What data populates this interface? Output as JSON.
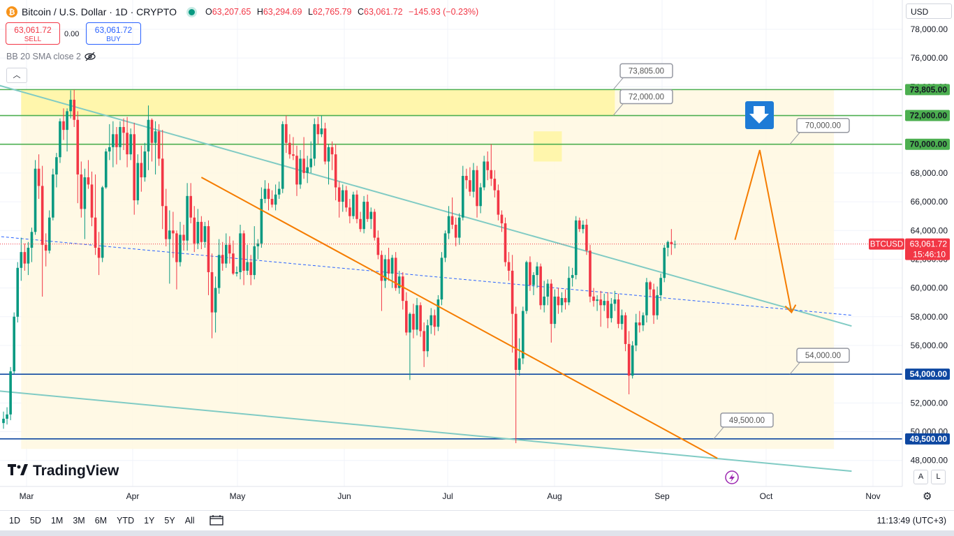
{
  "header": {
    "coin_icon": "bitcoin-icon",
    "symbol": "Bitcoin / U.S. Dollar · 1D · CRYPTO",
    "o_label": "O",
    "o_value": "63,207.65",
    "h_label": "H",
    "h_value": "63,294.69",
    "l_label": "L",
    "l_value": "62,765.79",
    "c_label": "C",
    "c_value": "63,061.72",
    "change": "−145.93 (−0.23%)",
    "status_color": "#089981"
  },
  "trade": {
    "sell_price": "63,061.72",
    "sell_label": "SELL",
    "spread": "0.00",
    "buy_price": "63,061.72",
    "buy_label": "BUY"
  },
  "indicator": {
    "label": "BB 20 SMA close 2",
    "visibility_icon": "eye-off-icon"
  },
  "collapse_icon": "chevron-up-icon",
  "currency": {
    "selected": "USD"
  },
  "logo": {
    "text": "TradingView"
  },
  "timeframes": [
    "1D",
    "5D",
    "1M",
    "3M",
    "6M",
    "YTD",
    "1Y",
    "5Y",
    "All"
  ],
  "calendar_icon": "calendar-range-icon",
  "clock": "11:13:49 (UTC+3)",
  "scale_buttons": [
    "A",
    "L"
  ],
  "settings_icon": "gear-icon",
  "bolt_icon": "lightning-icon",
  "colors": {
    "up": "#089981",
    "down": "#f23645",
    "orange": "#f57c00",
    "channel": "#80cbc4",
    "green_level": "#4caf50",
    "blue_level": "#0d47a1",
    "zone": "#fff59d"
  },
  "chart_data": {
    "type": "candlestick",
    "symbol": "BTCUSD",
    "x_axis": {
      "tick_labels": [
        "Mar",
        "Apr",
        "May",
        "Jun",
        "Jul",
        "Aug",
        "Sep",
        "Oct",
        "Nov"
      ]
    },
    "y_axis": {
      "ylim": [
        46800,
        78800
      ],
      "tick_labels": [
        "78,000.00",
        "76,000.00",
        "74,000.00",
        "72,000.00",
        "70,000.00",
        "68,000.00",
        "66,000.00",
        "64,000.00",
        "62,000.00",
        "60,000.00",
        "58,000.00",
        "56,000.00",
        "54,000.00",
        "52,000.00",
        "50,000.00",
        "48,000.00"
      ],
      "tick_values": [
        78000,
        76000,
        74000,
        72000,
        70000,
        68000,
        66000,
        64000,
        62000,
        60000,
        58000,
        56000,
        54000,
        52000,
        50000,
        48000
      ]
    },
    "last_price": {
      "value": 63061.72,
      "label": "63,061.72",
      "symbol": "BTCUSD",
      "countdown": "15:46:10"
    },
    "horizontal_levels": [
      {
        "value": 73805,
        "label": "73,805.00",
        "axis_label": "73,805.00",
        "color": "#4caf50"
      },
      {
        "value": 72000,
        "label": "72,000.00",
        "axis_label": "72,000.00",
        "color": "#4caf50"
      },
      {
        "value": 70000,
        "label": "70,000.00",
        "axis_label": "70,000.00",
        "color": "#4caf50"
      },
      {
        "value": 54000,
        "label": "54,000.00",
        "axis_label": "54,000.00",
        "color": "#0d47a1"
      },
      {
        "value": 49500,
        "label": "49,500.00",
        "axis_label": "49,500.00",
        "color": "#0d47a1"
      }
    ],
    "forecast_arrow": {
      "direction": "down",
      "color": "#1e7bd6"
    },
    "candles": [
      [
        50600,
        51400,
        50200,
        50900
      ],
      [
        50900,
        51700,
        50500,
        51200
      ],
      [
        51200,
        54500,
        50800,
        54200
      ],
      [
        54200,
        58300,
        54000,
        58000
      ],
      [
        58000,
        61800,
        57600,
        61400
      ],
      [
        61400,
        63500,
        60500,
        62500
      ],
      [
        62500,
        63100,
        61200,
        61700
      ],
      [
        61700,
        63200,
        60900,
        62800
      ],
      [
        62800,
        64200,
        61800,
        63900
      ],
      [
        63900,
        68900,
        63700,
        68300
      ],
      [
        68300,
        69300,
        66200,
        67100
      ],
      [
        67100,
        68500,
        59400,
        63000
      ],
      [
        63000,
        63800,
        61500,
        62600
      ],
      [
        62600,
        65400,
        62400,
        64900
      ],
      [
        64900,
        68300,
        64700,
        67900
      ],
      [
        67900,
        69400,
        67000,
        69100
      ],
      [
        69100,
        71800,
        68700,
        71600
      ],
      [
        71600,
        72500,
        70300,
        71000
      ],
      [
        71000,
        72500,
        69500,
        72300
      ],
      [
        72300,
        73750,
        71800,
        73100
      ],
      [
        73100,
        73805,
        71200,
        71700
      ],
      [
        71700,
        72300,
        65900,
        67900
      ],
      [
        67900,
        68800,
        64900,
        65500
      ],
      [
        65500,
        68300,
        63400,
        67700
      ],
      [
        67700,
        68900,
        66900,
        67200
      ],
      [
        67200,
        68100,
        64300,
        64900
      ],
      [
        64900,
        67900,
        62300,
        62800
      ],
      [
        62800,
        63900,
        60900,
        62100
      ],
      [
        62100,
        67100,
        61800,
        67000
      ],
      [
        67000,
        69700,
        66900,
        69500
      ],
      [
        69500,
        71400,
        68900,
        69800
      ],
      [
        69800,
        71600,
        68400,
        70700
      ],
      [
        70700,
        71200,
        68600,
        69800
      ],
      [
        69800,
        71600,
        68900,
        71200
      ],
      [
        71200,
        71800,
        69600,
        70800
      ],
      [
        70800,
        71900,
        68400,
        69300
      ],
      [
        69300,
        71100,
        68900,
        70700
      ],
      [
        70700,
        71500,
        65100,
        66100
      ],
      [
        66100,
        69300,
        65800,
        68700
      ],
      [
        68700,
        69900,
        66700,
        67700
      ],
      [
        67700,
        70100,
        67400,
        69500
      ],
      [
        69500,
        72700,
        68200,
        71700
      ],
      [
        71700,
        71800,
        68800,
        70100
      ],
      [
        70100,
        71600,
        67900,
        70900
      ],
      [
        70900,
        71400,
        68500,
        69000
      ],
      [
        69000,
        71000,
        64100,
        65700
      ],
      [
        65700,
        66900,
        62900,
        63400
      ],
      [
        63400,
        65400,
        60300,
        64000
      ],
      [
        64000,
        65300,
        62100,
        63800
      ],
      [
        63800,
        64000,
        59900,
        61800
      ],
      [
        61800,
        64600,
        61500,
        63700
      ],
      [
        63700,
        64400,
        62600,
        63300
      ],
      [
        63300,
        67300,
        62600,
        66400
      ],
      [
        66400,
        67300,
        64500,
        64900
      ],
      [
        64900,
        65700,
        62500,
        63100
      ],
      [
        63100,
        65500,
        62700,
        64600
      ],
      [
        64600,
        65000,
        62700,
        63200
      ],
      [
        63200,
        64600,
        62800,
        64300
      ],
      [
        64300,
        64700,
        59500,
        61100
      ],
      [
        61100,
        62400,
        56500,
        58300
      ],
      [
        58300,
        60800,
        56900,
        60000
      ],
      [
        60000,
        63400,
        59600,
        62300
      ],
      [
        62300,
        63200,
        61200,
        61700
      ],
      [
        61700,
        63800,
        61400,
        63000
      ],
      [
        63000,
        63600,
        61700,
        62400
      ],
      [
        62400,
        63300,
        60900,
        61000
      ],
      [
        61000,
        61500,
        60800,
        61100
      ],
      [
        61100,
        64400,
        60600,
        63800
      ],
      [
        63800,
        64000,
        60200,
        61200
      ],
      [
        61200,
        63000,
        60900,
        61800
      ],
      [
        61800,
        62300,
        60200,
        60900
      ],
      [
        60900,
        64300,
        60600,
        62900
      ],
      [
        62900,
        63400,
        62000,
        63100
      ],
      [
        63100,
        67000,
        62800,
        66200
      ],
      [
        66200,
        67500,
        65900,
        66900
      ],
      [
        66900,
        67300,
        65400,
        66200
      ],
      [
        66200,
        66800,
        65600,
        65800
      ],
      [
        65800,
        67200,
        65400,
        66500
      ],
      [
        66500,
        67400,
        66200,
        66900
      ],
      [
        66900,
        71600,
        66600,
        71400
      ],
      [
        71400,
        72000,
        69400,
        70100
      ],
      [
        70100,
        70700,
        69000,
        69300
      ],
      [
        69300,
        70500,
        68900,
        69200
      ],
      [
        69200,
        69900,
        66400,
        67200
      ],
      [
        67200,
        69600,
        66900,
        69000
      ],
      [
        69000,
        70500,
        67600,
        68000
      ],
      [
        68000,
        69200,
        67300,
        68400
      ],
      [
        68400,
        70200,
        68000,
        69000
      ],
      [
        69000,
        71800,
        68500,
        71400
      ],
      [
        71400,
        71900,
        70000,
        70700
      ],
      [
        70700,
        72000,
        70500,
        71100
      ],
      [
        71100,
        71500,
        68600,
        68800
      ],
      [
        68800,
        70000,
        67200,
        69800
      ],
      [
        69800,
        70200,
        68200,
        69300
      ],
      [
        69300,
        70000,
        66100,
        67000
      ],
      [
        67000,
        67400,
        64900,
        66000
      ],
      [
        66000,
        67200,
        65300,
        66800
      ],
      [
        66800,
        67100,
        65300,
        65600
      ],
      [
        65600,
        66200,
        64500,
        65000
      ],
      [
        65000,
        66700,
        64800,
        66500
      ],
      [
        66500,
        66800,
        64500,
        64800
      ],
      [
        64800,
        65300,
        63900,
        64100
      ],
      [
        64100,
        66400,
        63800,
        66000
      ],
      [
        66000,
        66500,
        64600,
        64800
      ],
      [
        64800,
        65600,
        64100,
        65300
      ],
      [
        65300,
        65500,
        63300,
        63500
      ],
      [
        63500,
        64000,
        62000,
        62300
      ],
      [
        62300,
        62600,
        58400,
        60500
      ],
      [
        60500,
        62300,
        60000,
        62000
      ],
      [
        62000,
        62800,
        60500,
        61000
      ],
      [
        61000,
        62300,
        60000,
        62100
      ],
      [
        62100,
        62500,
        59800,
        60000
      ],
      [
        60000,
        61200,
        59600,
        60800
      ],
      [
        60800,
        61100,
        58500,
        59100
      ],
      [
        59100,
        59700,
        56700,
        56900
      ],
      [
        56900,
        58300,
        53600,
        58200
      ],
      [
        58200,
        58900,
        56500,
        57100
      ],
      [
        57100,
        59300,
        56700,
        58800
      ],
      [
        58800,
        59000,
        56600,
        57000
      ],
      [
        57000,
        57600,
        54500,
        55600
      ],
      [
        55600,
        57800,
        55200,
        57400
      ],
      [
        57400,
        58600,
        56800,
        58100
      ],
      [
        58100,
        58500,
        56700,
        57300
      ],
      [
        57300,
        59500,
        57000,
        59200
      ],
      [
        59200,
        62500,
        58800,
        62100
      ],
      [
        62100,
        64000,
        61800,
        63800
      ],
      [
        63800,
        65700,
        63400,
        65000
      ],
      [
        65000,
        66300,
        64100,
        64400
      ],
      [
        64400,
        64900,
        62900,
        63500
      ],
      [
        63500,
        65200,
        63000,
        64900
      ],
      [
        64900,
        68500,
        64700,
        67800
      ],
      [
        67800,
        68300,
        66900,
        67500
      ],
      [
        67500,
        68400,
        66400,
        66700
      ],
      [
        66700,
        68700,
        66300,
        68200
      ],
      [
        68200,
        68500,
        64900,
        65700
      ],
      [
        65700,
        67300,
        65200,
        67000
      ],
      [
        67000,
        69200,
        66800,
        68800
      ],
      [
        68800,
        69500,
        67500,
        68200
      ],
      [
        68200,
        70000,
        67100,
        67600
      ],
      [
        67600,
        68200,
        66300,
        66800
      ],
      [
        66800,
        67200,
        64700,
        65100
      ],
      [
        65100,
        65400,
        63900,
        64500
      ],
      [
        64500,
        64900,
        61500,
        61800
      ],
      [
        61800,
        62500,
        60500,
        61200
      ],
      [
        61200,
        62300,
        55500,
        58200
      ],
      [
        58200,
        58700,
        49200,
        54300
      ],
      [
        54300,
        56500,
        53900,
        55100
      ],
      [
        55100,
        58700,
        54700,
        58400
      ],
      [
        58400,
        61900,
        58200,
        61800
      ],
      [
        61800,
        62200,
        59800,
        60200
      ],
      [
        60200,
        61100,
        59500,
        60900
      ],
      [
        60900,
        61800,
        60000,
        61500
      ],
      [
        61500,
        61700,
        58500,
        58800
      ],
      [
        58800,
        60500,
        58300,
        59400
      ],
      [
        59400,
        60600,
        58800,
        60300
      ],
      [
        60300,
        60600,
        56200,
        57500
      ],
      [
        57500,
        59900,
        57200,
        59400
      ],
      [
        59400,
        60000,
        58200,
        58800
      ],
      [
        58800,
        59700,
        58300,
        59300
      ],
      [
        59300,
        59900,
        58500,
        59000
      ],
      [
        59000,
        61500,
        58800,
        60700
      ],
      [
        60700,
        61400,
        60100,
        60900
      ],
      [
        60900,
        65000,
        60600,
        64700
      ],
      [
        64700,
        64900,
        63900,
        64100
      ],
      [
        64100,
        64700,
        63800,
        64400
      ],
      [
        64400,
        64800,
        62300,
        62600
      ],
      [
        62600,
        63000,
        59000,
        59400
      ],
      [
        59400,
        60000,
        58700,
        59100
      ],
      [
        59100,
        59500,
        58400,
        59200
      ],
      [
        59200,
        59800,
        57300,
        58800
      ],
      [
        58800,
        59600,
        58400,
        59100
      ],
      [
        59100,
        59700,
        57200,
        57900
      ],
      [
        57900,
        59300,
        57600,
        58900
      ],
      [
        58900,
        59800,
        58400,
        59200
      ],
      [
        59200,
        59600,
        57200,
        57500
      ],
      [
        57500,
        58500,
        57100,
        58100
      ],
      [
        58100,
        58300,
        55600,
        56100
      ],
      [
        56100,
        57000,
        52600,
        53900
      ],
      [
        53900,
        56300,
        53700,
        56000
      ],
      [
        56000,
        58200,
        55600,
        57600
      ],
      [
        57600,
        58400,
        56900,
        57400
      ],
      [
        57400,
        58300,
        57000,
        58100
      ],
      [
        58100,
        60700,
        57600,
        60400
      ],
      [
        60400,
        60500,
        59400,
        59900
      ],
      [
        59900,
        60300,
        57500,
        58100
      ],
      [
        58100,
        60100,
        57800,
        59500
      ],
      [
        59500,
        61000,
        59100,
        60700
      ],
      [
        60700,
        63000,
        60400,
        62800
      ],
      [
        62800,
        63300,
        62200,
        63200
      ],
      [
        63200,
        64100,
        62300,
        63050
      ],
      [
        63050,
        63300,
        62760,
        63062
      ]
    ],
    "x_mapping": {
      "first_index": 0,
      "first_x": 5,
      "step": 5.06
    },
    "channel_lines": [
      {
        "points": [
          [
            -2,
            74150
          ],
          [
            240,
            57350
          ]
        ],
        "color": "#80cbc4",
        "dash": false
      },
      {
        "points": [
          [
            -2,
            52850
          ],
          [
            240,
            47250
          ]
        ],
        "color": "#80cbc4",
        "dash": false
      },
      {
        "points": [
          [
            -2,
            63600
          ],
          [
            240,
            58100
          ]
        ],
        "color": "#2962ff",
        "dash": true
      }
    ],
    "orange_lines": [
      {
        "points": [
          [
            56,
            67700
          ],
          [
            202,
            48150
          ]
        ]
      },
      {
        "points": [
          [
            207,
            63350
          ],
          [
            214,
            69600
          ],
          [
            223,
            58300
          ]
        ]
      }
    ],
    "highlight_zones": [
      {
        "x0": 5,
        "x1": 173,
        "y0": 72000,
        "y1": 73805,
        "color": "#fff59d"
      },
      {
        "x0": 150,
        "x1": 158,
        "y0": 68800,
        "y1": 70900,
        "color": "#fff59d"
      }
    ],
    "background_zone": {
      "x0": 5,
      "x1": 235,
      "y0": 48800,
      "y1": 73805
    }
  }
}
